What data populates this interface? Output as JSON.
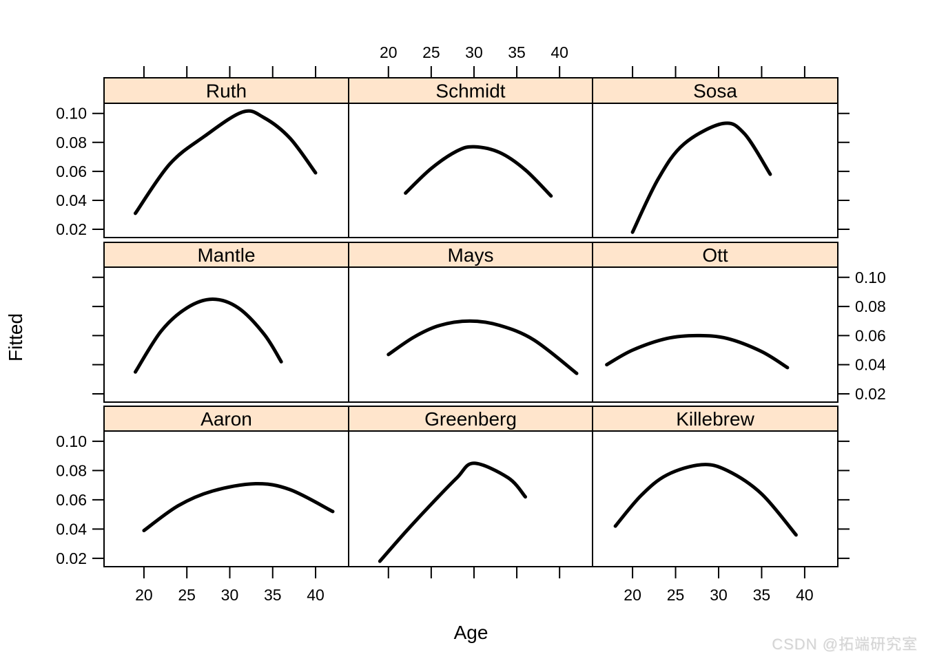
{
  "watermark": "CSDN @拓端研究室",
  "chart_data": {
    "type": "line",
    "layout": "trellis-3x3",
    "title": "",
    "xlabel": "Age",
    "ylabel": "Fitted",
    "x_ticks": [
      20,
      25,
      30,
      35,
      40
    ],
    "y_ticks": [
      0.02,
      0.04,
      0.06,
      0.08,
      0.1
    ],
    "xlim": [
      15.35,
      43.85
    ],
    "ylim": [
      0.0143,
      0.107
    ],
    "grid": false,
    "legend": "none",
    "top_label_cols": [
      1
    ],
    "bottom_label_cols": [
      0,
      2
    ],
    "left_label_rows": [
      0,
      2
    ],
    "right_label_rows": [
      1
    ],
    "strip_fill": "#ffe5cc",
    "panel_fill": "#ffffff",
    "border_color": "#000000",
    "line_color": "#000000",
    "panels": [
      {
        "name": "Ruth",
        "row": 0,
        "col": 0,
        "points": [
          [
            19,
            0.031
          ],
          [
            23,
            0.065
          ],
          [
            27,
            0.084
          ],
          [
            31.5,
            0.101
          ],
          [
            34,
            0.097
          ],
          [
            37,
            0.083
          ],
          [
            40,
            0.059
          ]
        ]
      },
      {
        "name": "Schmidt",
        "row": 0,
        "col": 1,
        "points": [
          [
            22,
            0.045
          ],
          [
            25,
            0.062
          ],
          [
            28,
            0.074
          ],
          [
            30,
            0.077
          ],
          [
            33,
            0.073
          ],
          [
            36,
            0.061
          ],
          [
            39,
            0.043
          ]
        ]
      },
      {
        "name": "Sosa",
        "row": 0,
        "col": 2,
        "points": [
          [
            20,
            0.018
          ],
          [
            23,
            0.055
          ],
          [
            26,
            0.079
          ],
          [
            30.5,
            0.093
          ],
          [
            33,
            0.086
          ],
          [
            36,
            0.058
          ]
        ]
      },
      {
        "name": "Mantle",
        "row": 1,
        "col": 0,
        "points": [
          [
            19,
            0.035
          ],
          [
            22,
            0.063
          ],
          [
            25,
            0.079
          ],
          [
            28,
            0.085
          ],
          [
            31,
            0.079
          ],
          [
            34,
            0.061
          ],
          [
            36,
            0.042
          ]
        ]
      },
      {
        "name": "Mays",
        "row": 1,
        "col": 1,
        "points": [
          [
            20,
            0.047
          ],
          [
            23,
            0.059
          ],
          [
            26,
            0.067
          ],
          [
            29.5,
            0.07
          ],
          [
            33,
            0.067
          ],
          [
            37,
            0.057
          ],
          [
            42,
            0.034
          ]
        ]
      },
      {
        "name": "Ott",
        "row": 1,
        "col": 2,
        "points": [
          [
            17,
            0.04
          ],
          [
            20,
            0.05
          ],
          [
            24,
            0.058
          ],
          [
            27.5,
            0.06
          ],
          [
            31,
            0.058
          ],
          [
            35,
            0.049
          ],
          [
            38,
            0.038
          ]
        ]
      },
      {
        "name": "Aaron",
        "row": 2,
        "col": 0,
        "points": [
          [
            20,
            0.039
          ],
          [
            24,
            0.056
          ],
          [
            28,
            0.066
          ],
          [
            33,
            0.071
          ],
          [
            37,
            0.067
          ],
          [
            42,
            0.052
          ]
        ]
      },
      {
        "name": "Greenberg",
        "row": 2,
        "col": 1,
        "points": [
          [
            19,
            0.018
          ],
          [
            22,
            0.038
          ],
          [
            25,
            0.057
          ],
          [
            28,
            0.075
          ],
          [
            30,
            0.085
          ],
          [
            34,
            0.075
          ],
          [
            36,
            0.062
          ]
        ]
      },
      {
        "name": "Killebrew",
        "row": 2,
        "col": 2,
        "points": [
          [
            18,
            0.042
          ],
          [
            21,
            0.063
          ],
          [
            24,
            0.077
          ],
          [
            28,
            0.084
          ],
          [
            31,
            0.08
          ],
          [
            35,
            0.064
          ],
          [
            39,
            0.036
          ]
        ]
      }
    ]
  }
}
